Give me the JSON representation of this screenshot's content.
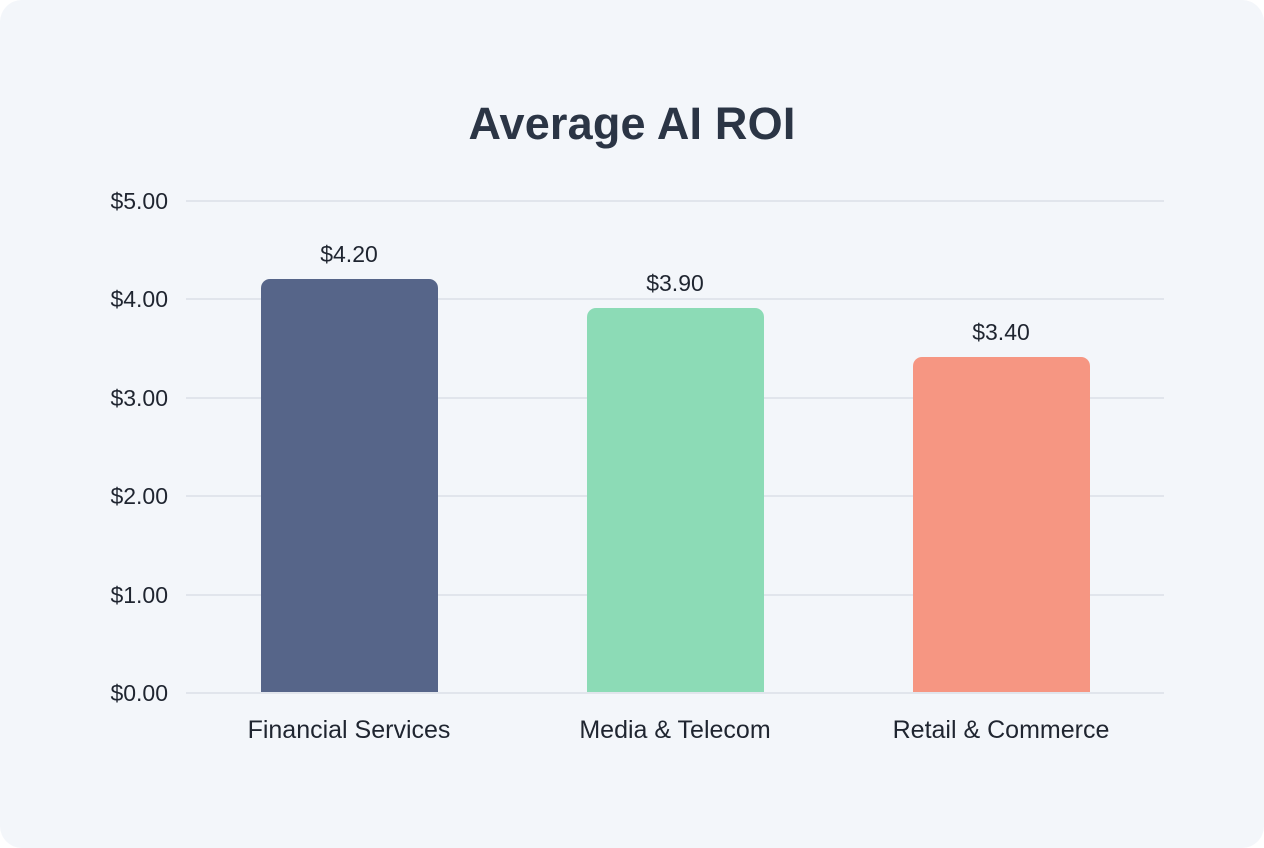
{
  "chart_data": {
    "type": "bar",
    "title": "Average AI ROI",
    "xlabel": "",
    "ylabel": "",
    "categories": [
      "Financial Services",
      "Media & Telecom",
      "Retail & Commerce"
    ],
    "values": [
      4.2,
      3.9,
      3.4
    ],
    "value_labels": [
      "$4.20",
      "$3.90",
      "$3.40"
    ],
    "colors": [
      "#566589",
      "#8cdbb6",
      "#f69682"
    ],
    "ylim": [
      0,
      5
    ],
    "yticks": [
      0,
      1,
      2,
      3,
      4,
      5
    ],
    "ytick_labels": [
      "$0.00",
      "$1.00",
      "$2.00",
      "$3.00",
      "$4.00",
      "$5.00"
    ],
    "grid": true,
    "legend": "none"
  },
  "title": "Average AI ROI",
  "yaxis": {
    "ticks": [
      "$5.00",
      "$4.00",
      "$3.00",
      "$2.00",
      "$1.00",
      "$0.00"
    ]
  },
  "bars": [
    {
      "category": "Financial Services",
      "value_label": "$4.20"
    },
    {
      "category": "Media & Telecom",
      "value_label": "$3.90"
    },
    {
      "category": "Retail & Commerce",
      "value_label": "$3.40"
    }
  ]
}
